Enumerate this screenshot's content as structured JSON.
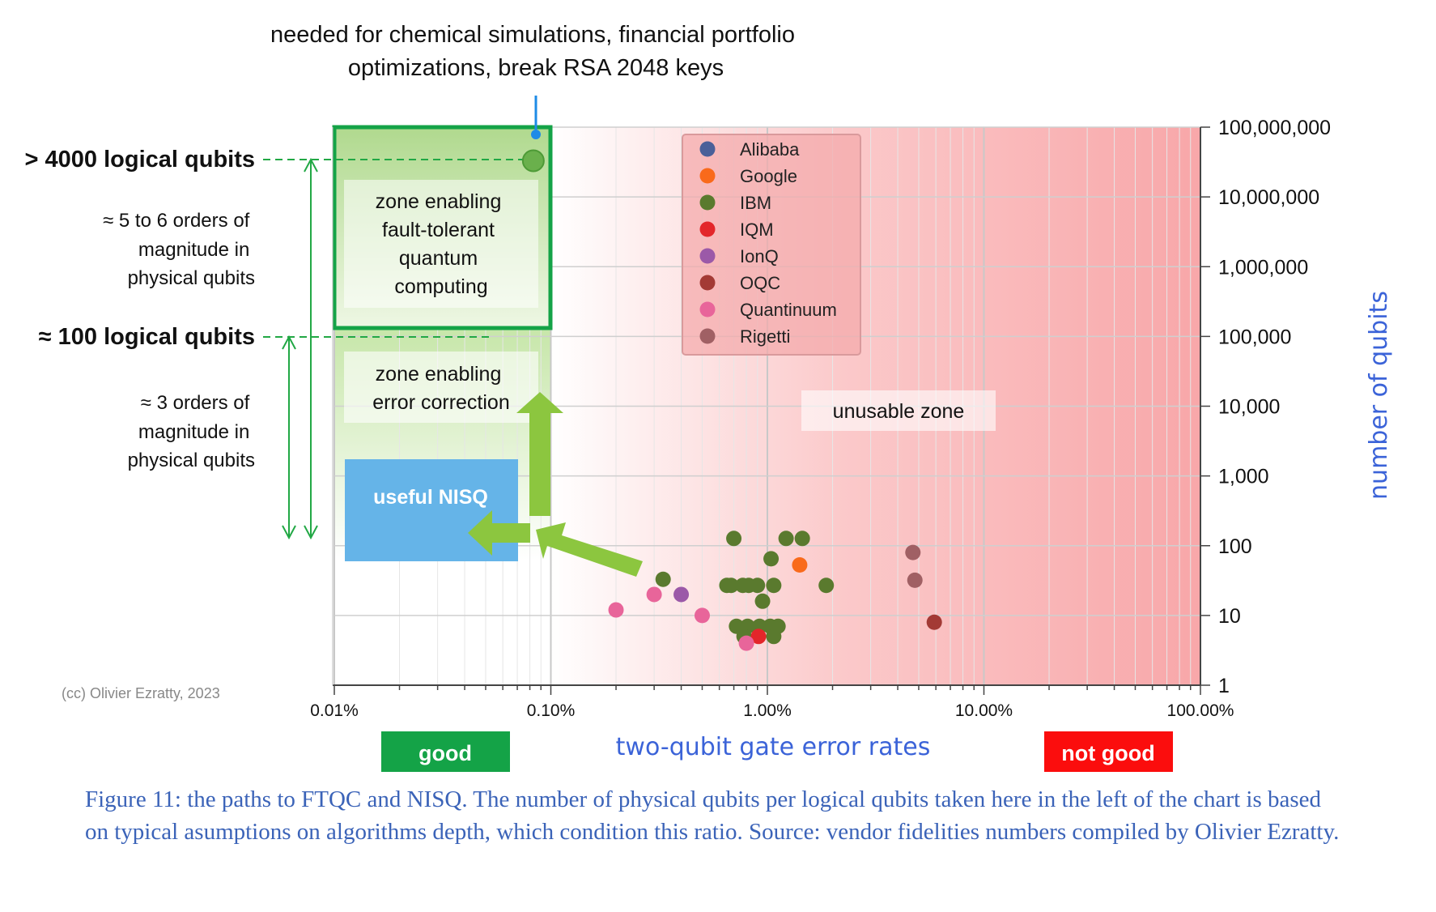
{
  "caption": "Figure 11: the paths to FTQC and NISQ. The number of physical qubits per logical qubits taken here in the left of the chart is based on typical asumptions on algorithms depth, which condition this ratio. Source: vendor fidelities numbers compiled by Olivier Ezratty.",
  "annotations": {
    "top_note": [
      "needed for chemical simulations, financial portfolio",
      "optimizations, break RSA 2048 keys"
    ],
    "logical_4000": "> 4000 logical qubits",
    "logical_100": "≈ 100 logical qubits",
    "orders_5_6": [
      "≈ 5 to 6 orders of",
      "magnitude in",
      "physical qubits"
    ],
    "orders_3": [
      "≈ 3 orders of",
      "magnitude in",
      "physical qubits"
    ],
    "copyright": "(cc) Olivier Ezratty, 2023",
    "good": "good",
    "not_good": "not good"
  },
  "zones": {
    "fault_tolerant": [
      "zone enabling",
      "fault-tolerant",
      "quantum",
      "computing"
    ],
    "error_correction": [
      "zone enabling",
      "error correction"
    ],
    "nisq": "useful NISQ",
    "unusable": "unusable zone"
  },
  "chart_data": {
    "type": "scatter",
    "xlabel": "two-qubit gate error rates",
    "ylabel": "number of qubits",
    "x_scale": "log",
    "y_scale": "log",
    "xlim": [
      0.0001,
      1
    ],
    "ylim": [
      1,
      100000000
    ],
    "x_ticks": [
      "0.01%",
      "0.10%",
      "1.00%",
      "10.00%",
      "100.00%"
    ],
    "y_ticks": [
      "1",
      "10",
      "100",
      "1,000",
      "10,000",
      "100,000",
      "1,000,000",
      "10,000,000",
      "100,000,000"
    ],
    "legend_position": "top-center",
    "series": [
      {
        "name": "Alibaba",
        "color": "#4a6099",
        "points": []
      },
      {
        "name": "Google",
        "color": "#f96a1b",
        "points": [
          [
            0.0141,
            53
          ]
        ]
      },
      {
        "name": "IBM",
        "color": "#5a7a2e",
        "points": [
          [
            0.00083,
            33000000
          ],
          [
            0.0033,
            33
          ],
          [
            0.007,
            127
          ],
          [
            0.0065,
            27
          ],
          [
            0.0068,
            27
          ],
          [
            0.0077,
            27
          ],
          [
            0.0082,
            27
          ],
          [
            0.009,
            27
          ],
          [
            0.0107,
            27
          ],
          [
            0.0104,
            65
          ],
          [
            0.0095,
            16
          ],
          [
            0.0122,
            127
          ],
          [
            0.0145,
            127
          ],
          [
            0.0187,
            27
          ],
          [
            0.0072,
            7
          ],
          [
            0.0081,
            7
          ],
          [
            0.0092,
            7
          ],
          [
            0.0103,
            7
          ],
          [
            0.0112,
            7
          ],
          [
            0.0078,
            5
          ],
          [
            0.0107,
            5
          ]
        ]
      },
      {
        "name": "IQM",
        "color": "#e3262a",
        "points": [
          [
            0.0091,
            5
          ]
        ]
      },
      {
        "name": "IonQ",
        "color": "#9b59a8",
        "points": [
          [
            0.004,
            20
          ]
        ]
      },
      {
        "name": "OQC",
        "color": "#a33a35",
        "points": [
          [
            0.059,
            8
          ]
        ]
      },
      {
        "name": "Quantinuum",
        "color": "#e8659a",
        "points": [
          [
            0.002,
            12
          ],
          [
            0.003,
            20
          ],
          [
            0.005,
            10
          ],
          [
            0.008,
            4
          ]
        ]
      },
      {
        "name": "Rigetti",
        "color": "#a06064",
        "points": [
          [
            0.047,
            80
          ],
          [
            0.048,
            32
          ]
        ]
      }
    ]
  }
}
